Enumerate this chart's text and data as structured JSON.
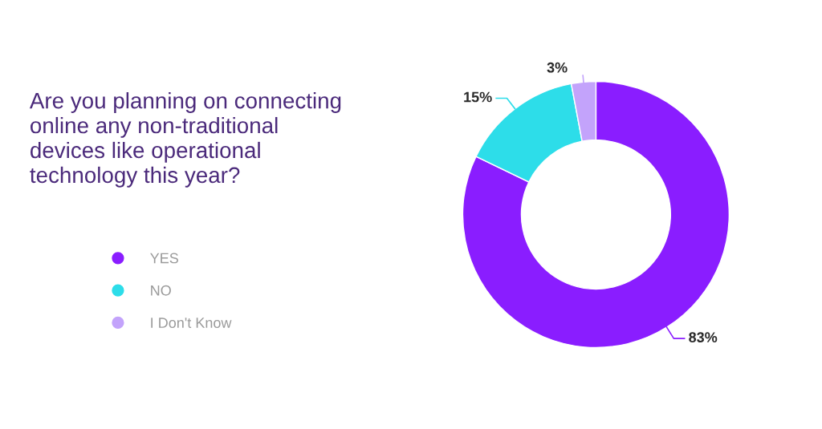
{
  "chart_data": {
    "type": "donut",
    "title": "Are you planning on connecting\nonline any non-traditional\ndevices like operational\ntechnology this year?",
    "categories": [
      "YES",
      "NO",
      "I Don't Know"
    ],
    "values": [
      83,
      15,
      3
    ],
    "colors": [
      "#8a1dff",
      "#2ddde9",
      "#c3a3fb"
    ],
    "value_labels": [
      "83%",
      "15%",
      "3%"
    ],
    "legend": "left"
  }
}
